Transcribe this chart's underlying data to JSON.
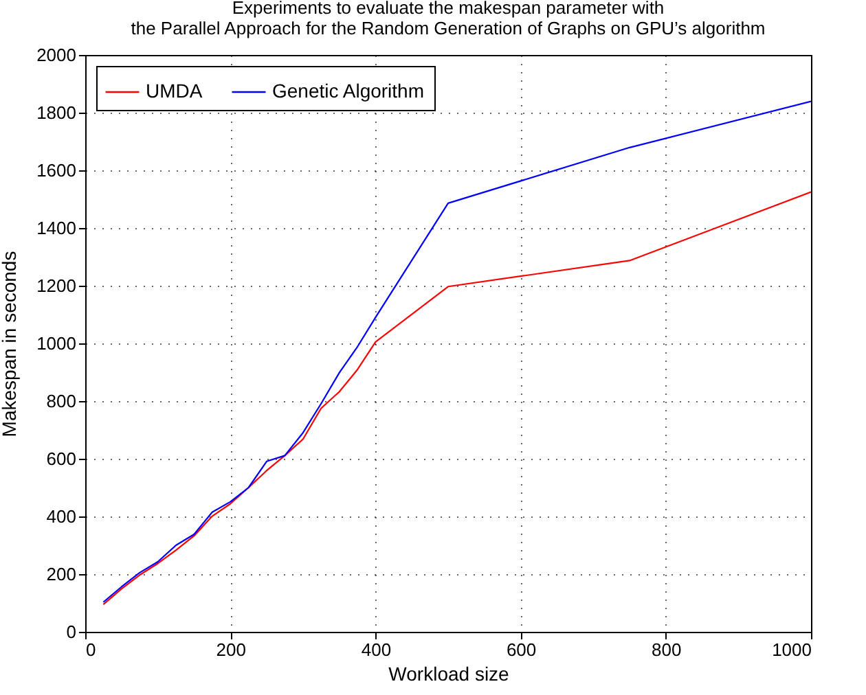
{
  "chart_data": {
    "type": "line",
    "title": "Experiments to evaluate the makespan parameter with\nthe Parallel Approach for the Random Generation of Graphs on GPU’s algorithm",
    "xlabel": "Workload size",
    "ylabel": "Makespan in seconds",
    "x": [
      25,
      50,
      75,
      100,
      125,
      150,
      175,
      200,
      225,
      250,
      275,
      300,
      325,
      350,
      375,
      400,
      500,
      750,
      1000
    ],
    "series": [
      {
        "name": "UMDA",
        "color": "#ff0000",
        "values": [
          95,
          149,
          197,
          237,
          283,
          333,
          401,
          444,
          500,
          559,
          611,
          668,
          775,
          832,
          909,
          1005,
          1197,
          1287,
          1525
        ]
      },
      {
        "name": "Genetic Algorithm",
        "color": "#0000ff",
        "values": [
          103,
          156,
          205,
          243,
          300,
          338,
          415,
          451,
          500,
          591,
          611,
          690,
          791,
          898,
          988,
          1090,
          1486,
          1679,
          1839
        ]
      }
    ],
    "xlim": [
      0,
      1000
    ],
    "xticks": [
      0,
      200,
      400,
      600,
      800,
      1000
    ],
    "ylim": [
      0,
      2000
    ],
    "yticks": [
      0,
      200,
      400,
      600,
      800,
      1000,
      1200,
      1400,
      1600,
      1800,
      2000
    ],
    "grid": true,
    "legend": "top left",
    "marker": "none",
    "line_style": "solid"
  }
}
